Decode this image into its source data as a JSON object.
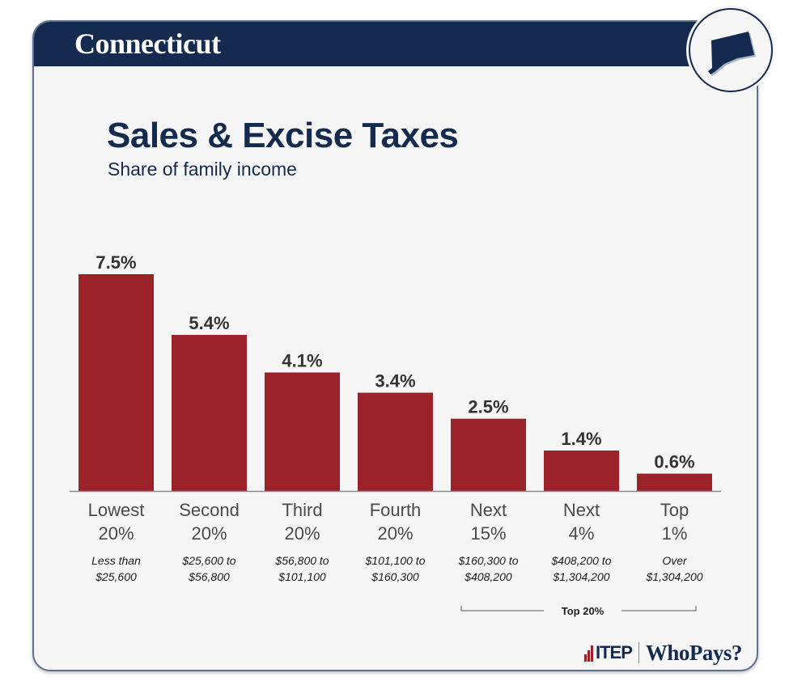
{
  "header": {
    "state": "Connecticut",
    "state_icon": "connecticut-map-icon"
  },
  "title": "Sales & Excise Taxes",
  "subtitle": "Share of family income",
  "colors": {
    "navy": "#142b4f",
    "bar": "#9b2229",
    "background": "#f6f6f7"
  },
  "chart_data": {
    "type": "bar",
    "title": "Sales & Excise Taxes",
    "subtitle": "Share of family income",
    "xlabel": "",
    "ylabel": "",
    "ylim": [
      0,
      7.5
    ],
    "grid": false,
    "categories": [
      {
        "line1": "Lowest",
        "line2": "20%",
        "range1": "Less than",
        "range2": "$25,600"
      },
      {
        "line1": "Second",
        "line2": "20%",
        "range1": "$25,600 to",
        "range2": "$56,800"
      },
      {
        "line1": "Third",
        "line2": "20%",
        "range1": "$56,800 to",
        "range2": "$101,100"
      },
      {
        "line1": "Fourth",
        "line2": "20%",
        "range1": "$101,100 to",
        "range2": "$160,300"
      },
      {
        "line1": "Next",
        "line2": "15%",
        "range1": "$160,300 to",
        "range2": "$408,200"
      },
      {
        "line1": "Next",
        "line2": "4%",
        "range1": "$408,200 to",
        "range2": "$1,304,200"
      },
      {
        "line1": "Top",
        "line2": "1%",
        "range1": "Over",
        "range2": "$1,304,200"
      }
    ],
    "values": [
      7.5,
      5.4,
      4.1,
      3.4,
      2.5,
      1.4,
      0.6
    ],
    "value_labels": [
      "7.5%",
      "5.4%",
      "4.1%",
      "3.4%",
      "2.5%",
      "1.4%",
      "0.6%"
    ],
    "group_bracket": {
      "label": "Top 20%",
      "from_index": 4,
      "to_index": 6
    }
  },
  "footer": {
    "itep": "ITEP",
    "whopays": "WhoPays?"
  }
}
